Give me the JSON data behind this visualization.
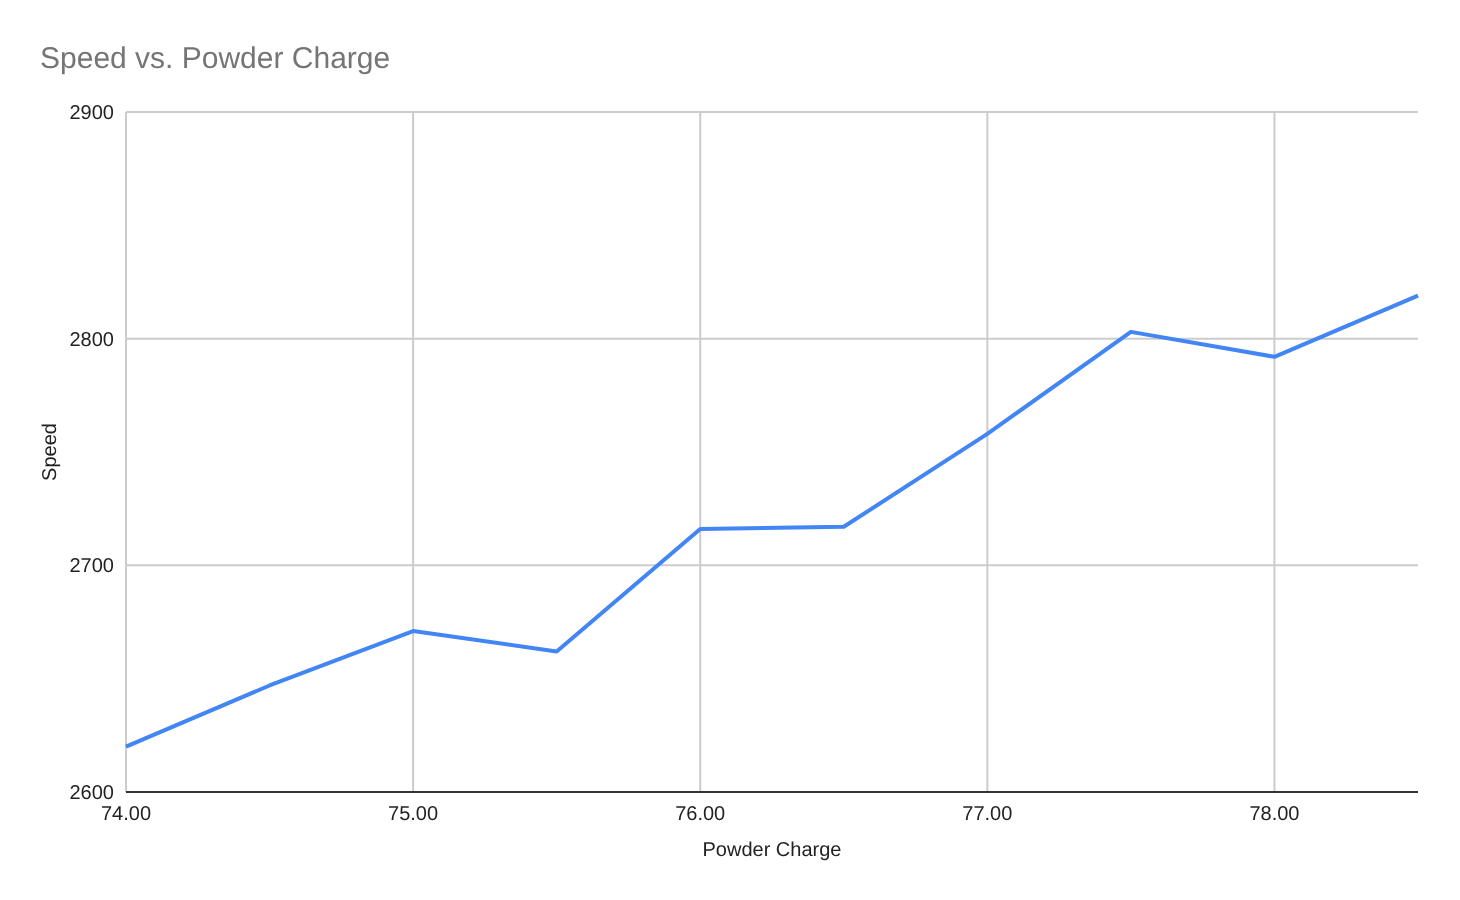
{
  "chart_data": {
    "type": "line",
    "title": "Speed vs. Powder Charge",
    "xlabel": "Powder Charge",
    "ylabel": "Speed",
    "x": [
      74,
      74.5,
      75,
      75.5,
      76,
      76.5,
      77,
      77.5,
      78,
      78.5
    ],
    "series": [
      {
        "color": "#4285f4",
        "values": [
          2620,
          2647,
          2671,
          2662,
          2716,
          2717,
          2758,
          2803,
          2792,
          2819
        ]
      }
    ],
    "xlim": [
      74,
      78.5
    ],
    "xticks": [
      {
        "value": 74,
        "label": "74.00"
      },
      {
        "value": 75,
        "label": "75.00"
      },
      {
        "value": 76,
        "label": "76.00"
      },
      {
        "value": 77,
        "label": "77.00"
      },
      {
        "value": 78,
        "label": "78.00"
      }
    ],
    "ylim": [
      2600,
      2900
    ],
    "yticks": [
      2600,
      2700,
      2800,
      2900
    ],
    "grid": true,
    "marker": "none",
    "line_style": "solid"
  }
}
